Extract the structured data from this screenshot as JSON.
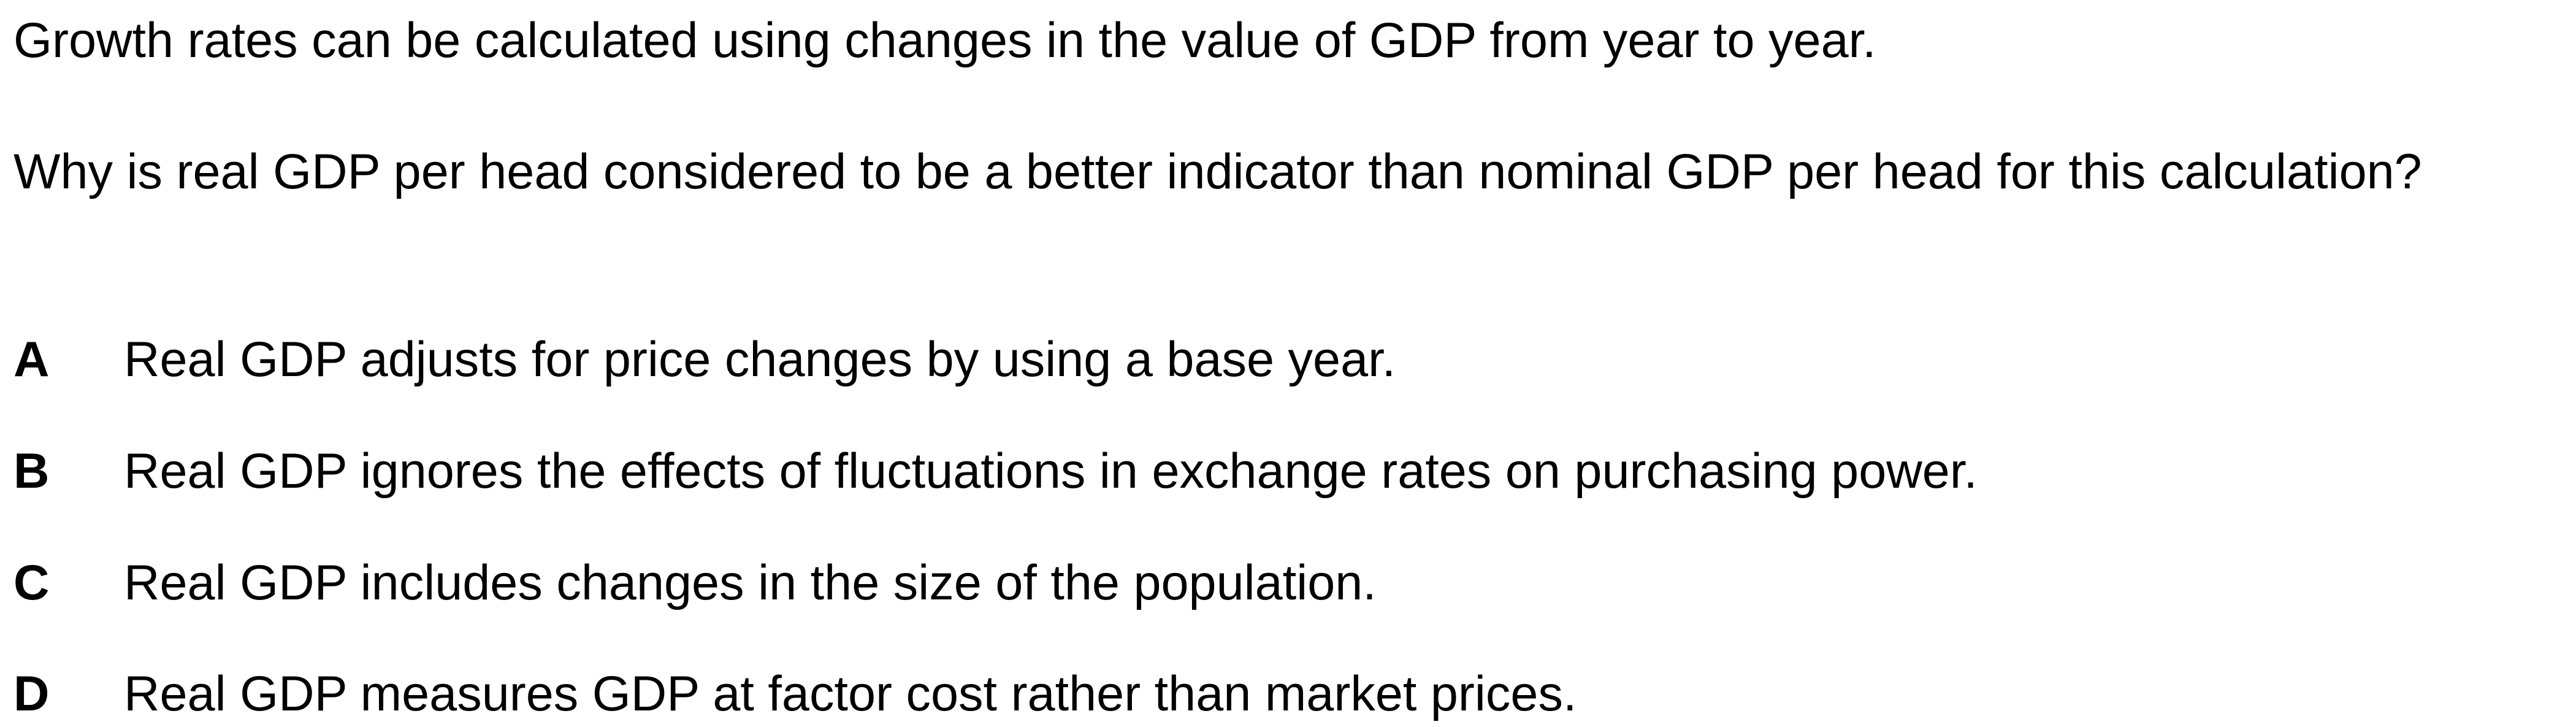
{
  "question": {
    "stem": "Growth rates can be calculated using changes in the value of GDP from year to year.",
    "prompt": "Why is real GDP per head considered to be a better indicator than nominal GDP per head for this calculation?"
  },
  "options": [
    {
      "letter": "A",
      "text": "Real GDP adjusts for price changes by using a base year."
    },
    {
      "letter": "B",
      "text": "Real GDP ignores the effects of fluctuations in exchange rates on purchasing power."
    },
    {
      "letter": "C",
      "text": "Real GDP includes changes in the size of the population."
    },
    {
      "letter": "D",
      "text": "Real GDP measures GDP at factor cost rather than market prices."
    }
  ]
}
